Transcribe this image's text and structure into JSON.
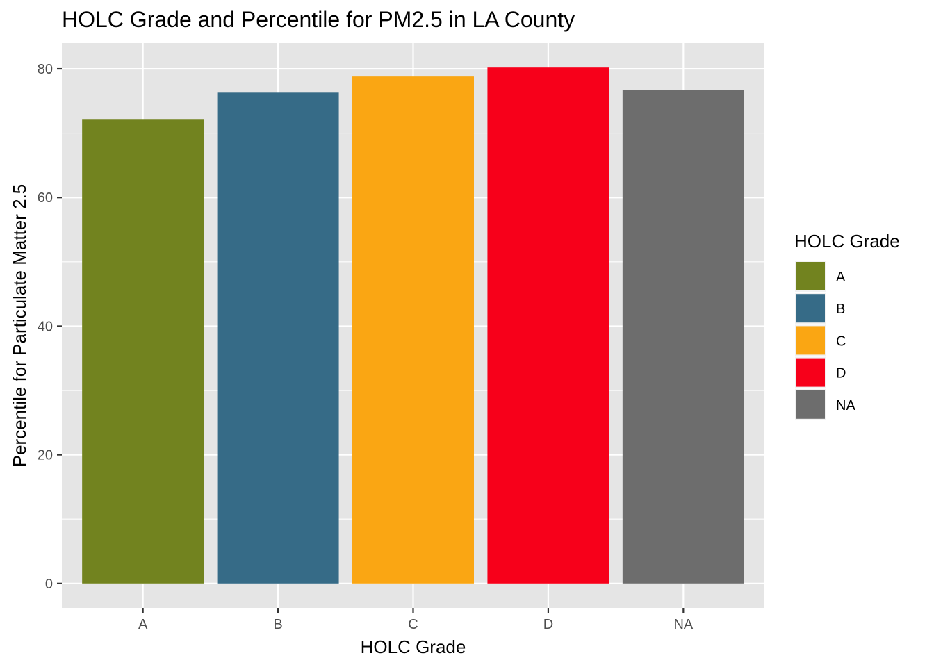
{
  "chart_data": {
    "type": "bar",
    "title": "HOLC Grade and Percentile for PM2.5 in LA County",
    "xlabel": "HOLC Grade",
    "ylabel": "Percentile for Particulate Matter 2.5",
    "categories": [
      "A",
      "B",
      "C",
      "D",
      "NA"
    ],
    "values": [
      72.2,
      76.3,
      78.8,
      80.2,
      76.7
    ],
    "colors": [
      "#72831F",
      "#366B87",
      "#FAA613",
      "#F7001A",
      "#6D6D6D"
    ],
    "ylim": [
      -3.8,
      84.0
    ],
    "yticks": [
      0,
      20,
      40,
      60,
      80
    ],
    "grid": true,
    "panel_background": "#E5E5E5",
    "legend": {
      "title": "HOLC Grade",
      "placement": "right",
      "entries": [
        "A",
        "B",
        "C",
        "D",
        "NA"
      ]
    }
  }
}
